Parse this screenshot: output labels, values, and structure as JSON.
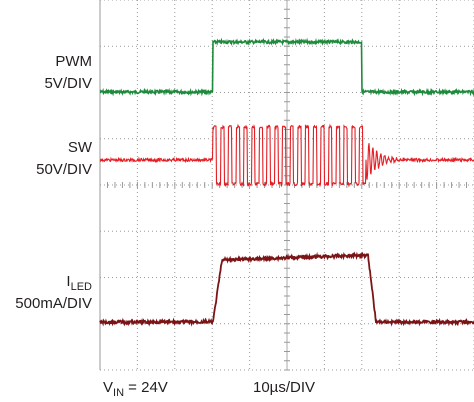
{
  "traces": [
    {
      "name": "PWM",
      "scale": "5V/DIV"
    },
    {
      "name": "SW",
      "scale": "50V/DIV"
    },
    {
      "name": "I",
      "name_subscript": "LED",
      "scale": "500mA/DIV"
    }
  ],
  "footer": {
    "vin_symbol": "V",
    "vin_subscript": "IN",
    "vin_value": " = 24V",
    "timebase": "10µs/DIV"
  }
}
